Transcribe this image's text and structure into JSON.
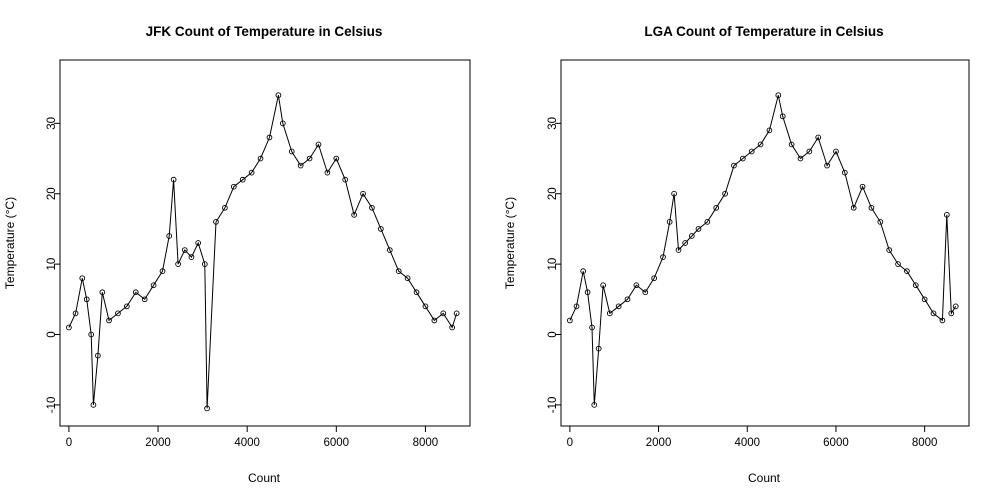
{
  "colors": {
    "background": "#ffffff",
    "ink": "#000000"
  },
  "chart_data": [
    {
      "type": "line",
      "title": "JFK Count of Temperature in Celsius",
      "xlabel": "Count",
      "ylabel": "Temperature (°C)",
      "xlim": [
        -200,
        9000
      ],
      "ylim": [
        -13,
        39
      ],
      "xticks": [
        0,
        2000,
        4000,
        6000,
        8000
      ],
      "yticks": [
        -10,
        0,
        10,
        20,
        30
      ],
      "x_tick_labels": [
        "0",
        "2000",
        "4000",
        "6000",
        "8000"
      ],
      "y_tick_labels": [
        "-10",
        "0",
        "10",
        "20",
        "30"
      ],
      "marker": "open-circle",
      "series": [
        {
          "x": [
            0,
            150,
            300,
            400,
            500,
            550,
            650,
            750,
            900,
            1100,
            1300,
            1500,
            1700,
            1900,
            2100,
            2250,
            2350,
            2450,
            2600,
            2750,
            2900,
            3050,
            3100,
            3300,
            3500,
            3700,
            3900,
            4100,
            4300,
            4500,
            4700,
            4800,
            5000,
            5200,
            5400,
            5600,
            5800,
            6000,
            6200,
            6400,
            6600,
            6800,
            7000,
            7200,
            7400,
            7600,
            7800,
            8000,
            8200,
            8400,
            8600,
            8700
          ],
          "y": [
            1,
            3,
            8,
            5,
            0,
            -10,
            -3,
            6,
            2,
            3,
            4,
            6,
            5,
            7,
            9,
            14,
            22,
            10,
            12,
            11,
            13,
            10,
            -10.5,
            16,
            18,
            21,
            22,
            23,
            25,
            28,
            34,
            30,
            26,
            24,
            25,
            27,
            23,
            25,
            22,
            17,
            20,
            18,
            15,
            12,
            9,
            8,
            6,
            4,
            2,
            3,
            1,
            3
          ]
        }
      ]
    },
    {
      "type": "line",
      "title": "LGA Count of Temperature in Celsius",
      "xlabel": "Count",
      "ylabel": "Temperature (°C)",
      "xlim": [
        -200,
        9000
      ],
      "ylim": [
        -13,
        39
      ],
      "xticks": [
        0,
        2000,
        4000,
        6000,
        8000
      ],
      "yticks": [
        -10,
        0,
        10,
        20,
        30
      ],
      "x_tick_labels": [
        "0",
        "2000",
        "4000",
        "6000",
        "8000"
      ],
      "y_tick_labels": [
        "-10",
        "0",
        "10",
        "20",
        "30"
      ],
      "marker": "open-circle",
      "series": [
        {
          "x": [
            0,
            150,
            300,
            400,
            500,
            550,
            650,
            750,
            900,
            1100,
            1300,
            1500,
            1700,
            1900,
            2100,
            2250,
            2350,
            2450,
            2600,
            2750,
            2900,
            3100,
            3300,
            3500,
            3700,
            3900,
            4100,
            4300,
            4500,
            4700,
            4800,
            5000,
            5200,
            5400,
            5600,
            5800,
            6000,
            6200,
            6400,
            6600,
            6800,
            7000,
            7200,
            7400,
            7600,
            7800,
            8000,
            8200,
            8400,
            8500,
            8600,
            8700
          ],
          "y": [
            2,
            4,
            9,
            6,
            1,
            -10,
            -2,
            7,
            3,
            4,
            5,
            7,
            6,
            8,
            11,
            16,
            20,
            12,
            13,
            14,
            15,
            16,
            18,
            20,
            24,
            25,
            26,
            27,
            29,
            34,
            31,
            27,
            25,
            26,
            28,
            24,
            26,
            23,
            18,
            21,
            18,
            16,
            12,
            10,
            9,
            7,
            5,
            3,
            2,
            17,
            3,
            4
          ]
        }
      ]
    }
  ]
}
